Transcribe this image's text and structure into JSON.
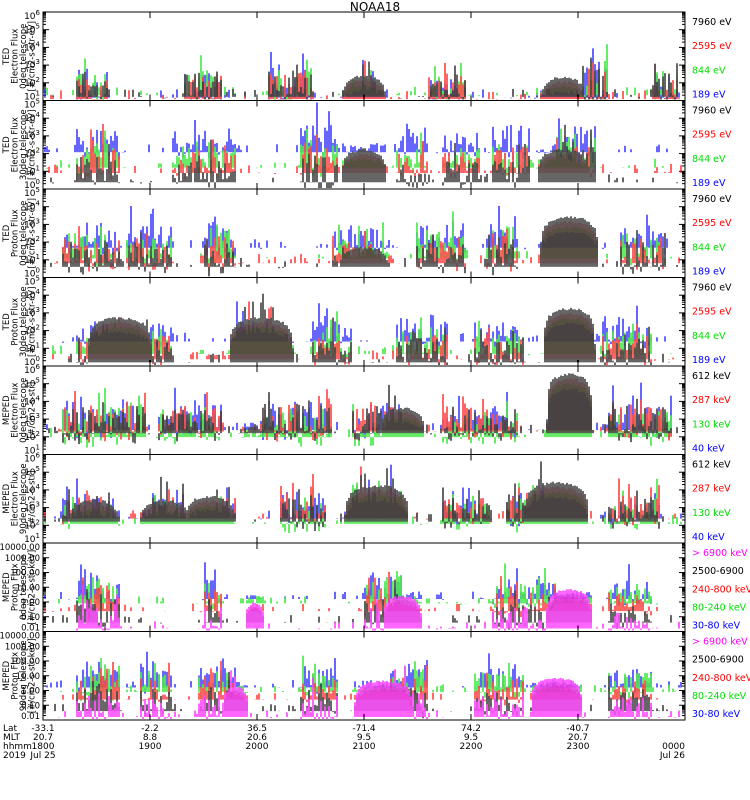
{
  "title": "NOAA18",
  "colors": {
    "black": "#000000",
    "red": "#ff0000",
    "green": "#00e000",
    "blue": "#0000ff",
    "magenta": "#ff00ff"
  },
  "chart_data": [
    {
      "type": "scatter",
      "instrument": "TED",
      "ylabel": [
        "TED",
        "Electron Flux",
        "0deg telescope",
        "[#/cm2-s-str-eV]"
      ],
      "yscale": "log",
      "ylim": [
        10,
        1000000
      ],
      "yticks": [
        "10^1",
        "10^2",
        "10^3",
        "10^4",
        "10^5",
        "10^6"
      ],
      "legend": [
        {
          "label": "7960 eV",
          "color": "black"
        },
        {
          "label": "2595 eV",
          "color": "red"
        },
        {
          "label": "844 eV",
          "color": "green"
        },
        {
          "label": "189 eV",
          "color": "blue"
        }
      ],
      "baseline": [
        20,
        15,
        25,
        18
      ],
      "segments": [
        [
          0.05,
          0.1,
          1
        ],
        [
          0.22,
          0.28,
          1.2
        ],
        [
          0.35,
          0.42,
          1.4
        ],
        [
          0.48,
          0.52,
          0.8
        ],
        [
          0.6,
          0.66,
          0.9
        ],
        [
          0.84,
          0.88,
          1.8
        ],
        [
          0.95,
          0.99,
          1.2
        ]
      ],
      "arches": [
        [
          0.5,
          0.035,
          300
        ],
        [
          0.81,
          0.035,
          250
        ]
      ]
    },
    {
      "type": "scatter",
      "instrument": "TED",
      "ylabel": [
        "TED",
        "Electron Flux",
        "30deg telescope",
        "[#/cm2-s-str-eV]"
      ],
      "yscale": "log",
      "ylim": [
        1,
        100000
      ],
      "yticks": [
        "10^0",
        "10^1",
        "10^2",
        "10^3",
        "10^4",
        "10^5"
      ],
      "legend": [
        {
          "label": "7960 eV",
          "color": "black"
        },
        {
          "label": "2595 eV",
          "color": "red"
        },
        {
          "label": "844 eV",
          "color": "green"
        },
        {
          "label": "189 eV",
          "color": "blue"
        }
      ],
      "baseline": [
        3,
        10,
        20,
        150
      ],
      "segments": [
        [
          0.05,
          0.12,
          1.2
        ],
        [
          0.2,
          0.3,
          1
        ],
        [
          0.4,
          0.46,
          1.4
        ],
        [
          0.55,
          0.6,
          0.9
        ],
        [
          0.62,
          0.68,
          1
        ],
        [
          0.7,
          0.76,
          1.3
        ],
        [
          0.8,
          0.86,
          1.8
        ]
      ],
      "arches": [
        [
          0.5,
          0.035,
          200
        ],
        [
          0.81,
          0.04,
          200
        ]
      ]
    },
    {
      "type": "scatter",
      "instrument": "TED",
      "ylabel": [
        "TED",
        "Proton Flux",
        "0deg telescope",
        "[#/cm2-s-str-eV]"
      ],
      "yscale": "log",
      "ylim": [
        1,
        100000
      ],
      "yticks": [
        "10^0",
        "10^1",
        "10^2",
        "10^3",
        "10^4",
        "10^5"
      ],
      "legend": [
        {
          "label": "7960 eV",
          "color": "black"
        },
        {
          "label": "2595 eV",
          "color": "red"
        },
        {
          "label": "844 eV",
          "color": "green"
        },
        {
          "label": "189 eV",
          "color": "blue"
        }
      ],
      "baseline": [
        5,
        8,
        15,
        60
      ],
      "segments": [
        [
          0.03,
          0.12,
          1.2
        ],
        [
          0.13,
          0.2,
          1
        ],
        [
          0.25,
          0.3,
          1.4
        ],
        [
          0.45,
          0.53,
          0.9
        ],
        [
          0.58,
          0.66,
          1.2
        ],
        [
          0.69,
          0.74,
          1.6
        ],
        [
          0.9,
          0.97,
          1.2
        ]
      ],
      "arches": [
        [
          0.82,
          0.045,
          3000
        ],
        [
          0.5,
          0.04,
          60
        ]
      ]
    },
    {
      "type": "scatter",
      "instrument": "TED",
      "ylabel": [
        "TED",
        "Proton Flux",
        "30deg telescope",
        "[#/cm2-s-str-eV]"
      ],
      "yscale": "log",
      "ylim": [
        1,
        100000
      ],
      "yticks": [
        "10^0",
        "10^1",
        "10^2",
        "10^3",
        "10^4",
        "10^5"
      ],
      "legend": [
        {
          "label": "7960 eV",
          "color": "black"
        },
        {
          "label": "2595 eV",
          "color": "red"
        },
        {
          "label": "844 eV",
          "color": "green"
        },
        {
          "label": "189 eV",
          "color": "blue"
        }
      ],
      "baseline": [
        2,
        3,
        6,
        30
      ],
      "segments": [
        [
          0.05,
          0.12,
          1
        ],
        [
          0.16,
          0.2,
          1.2
        ],
        [
          0.3,
          0.36,
          1.1
        ],
        [
          0.42,
          0.48,
          1
        ],
        [
          0.55,
          0.63,
          1.3
        ],
        [
          0.67,
          0.75,
          1
        ],
        [
          0.87,
          0.95,
          1.1
        ]
      ],
      "arches": [
        [
          0.82,
          0.04,
          2000
        ],
        [
          0.12,
          0.05,
          600
        ],
        [
          0.34,
          0.05,
          600
        ]
      ]
    },
    {
      "type": "scatter",
      "instrument": "MEPED",
      "ylabel": [
        "MEPED",
        "Electron Flux",
        "0deg telescope",
        "[#/cm2-s-str]"
      ],
      "yscale": "log",
      "ylim": [
        10,
        1000000
      ],
      "yticks": [
        "10^1",
        "10^2",
        "10^3",
        "10^4",
        "10^5",
        "10^6"
      ],
      "legend": [
        {
          "label": "612 keV",
          "color": "black"
        },
        {
          "label": "287 keV",
          "color": "red"
        },
        {
          "label": "130 keV",
          "color": "green"
        },
        {
          "label": "40 keV",
          "color": "blue"
        }
      ],
      "baseline": [
        200,
        250,
        120,
        300
      ],
      "segments": [
        [
          0.03,
          0.16,
          1.5
        ],
        [
          0.18,
          0.28,
          1.2
        ],
        [
          0.34,
          0.45,
          1.4
        ],
        [
          0.48,
          0.56,
          1.3
        ],
        [
          0.62,
          0.74,
          1.2
        ],
        [
          0.88,
          0.98,
          1.3
        ]
      ],
      "arches": [
        [
          0.56,
          0.035,
          5000
        ],
        [
          0.82,
          0.035,
          400000
        ],
        [
          0.33,
          0.02,
          400
        ]
      ]
    },
    {
      "type": "scatter",
      "instrument": "MEPED",
      "ylabel": [
        "MEPED",
        "Electron Flux",
        "90deg telescope",
        "[#/cm2-s-str]"
      ],
      "yscale": "log",
      "ylim": [
        10,
        1000000
      ],
      "yticks": [
        "10^1",
        "10^2",
        "10^3",
        "10^4",
        "10^5",
        "10^6"
      ],
      "legend": [
        {
          "label": "612 keV",
          "color": "black"
        },
        {
          "label": "287 keV",
          "color": "red"
        },
        {
          "label": "130 keV",
          "color": "green"
        },
        {
          "label": "40 keV",
          "color": "blue"
        }
      ],
      "baseline": [
        200,
        300,
        150,
        300
      ],
      "segments": [
        [
          0.03,
          0.12,
          1
        ],
        [
          0.17,
          0.22,
          1.2
        ],
        [
          0.27,
          0.3,
          1.1
        ],
        [
          0.37,
          0.44,
          1.3
        ],
        [
          0.48,
          0.56,
          1.4
        ],
        [
          0.62,
          0.7,
          1
        ],
        [
          0.72,
          0.78,
          1.3
        ],
        [
          0.88,
          0.96,
          1.1
        ]
      ],
      "arches": [
        [
          0.08,
          0.04,
          3000
        ],
        [
          0.19,
          0.04,
          3000
        ],
        [
          0.26,
          0.04,
          5000
        ],
        [
          0.52,
          0.05,
          20000
        ],
        [
          0.8,
          0.05,
          30000
        ]
      ]
    },
    {
      "type": "scatter",
      "instrument": "MEPED",
      "ylabel": [
        "MEPED",
        "Proton Flux",
        "0deg telescope",
        "[#/cm2-s-str-keV]"
      ],
      "yscale": "log",
      "ylim": [
        0.01,
        10000
      ],
      "yticks": [
        "0.01",
        "0.10",
        "1.00",
        "10.00",
        "100.00",
        "1000.00",
        "10000.00"
      ],
      "legend": [
        {
          "label": "> 6900 keV",
          "color": "magenta"
        },
        {
          "label": "2500-6900",
          "color": "black"
        },
        {
          "label": "240-800 keV",
          "color": "red"
        },
        {
          "label": "80-240 keV",
          "color": "green"
        },
        {
          "label": "30-80 keV",
          "color": "blue"
        }
      ],
      "baseline": [
        0.02,
        0.05,
        0.3,
        1,
        2
      ],
      "segments": [
        [
          0.05,
          0.12,
          1.5
        ],
        [
          0.25,
          0.28,
          1.2
        ],
        [
          0.5,
          0.56,
          1.3
        ],
        [
          0.7,
          0.8,
          1.2
        ],
        [
          0.88,
          0.95,
          1.1
        ]
      ],
      "arches": [
        [
          0.56,
          0.03,
          3
        ],
        [
          0.82,
          0.035,
          8
        ],
        [
          0.33,
          0.015,
          1
        ]
      ]
    },
    {
      "type": "scatter",
      "instrument": "MEPED",
      "ylabel": [
        "MEPED",
        "Proton Flux",
        "90deg telescope",
        "[#/cm2-s-str-keV]"
      ],
      "yscale": "log",
      "ylim": [
        0.01,
        10000
      ],
      "yticks": [
        "0.01",
        "0.10",
        "1.00",
        "10.00",
        "100.00",
        "1000.00",
        "10000.00"
      ],
      "legend": [
        {
          "label": "> 6900 keV",
          "color": "magenta"
        },
        {
          "label": "2500-6900",
          "color": "black"
        },
        {
          "label": "240-800 keV",
          "color": "red"
        },
        {
          "label": "80-240 keV",
          "color": "green"
        },
        {
          "label": "30-80 keV",
          "color": "blue"
        }
      ],
      "baseline": [
        0.02,
        0.05,
        0.3,
        1,
        2
      ],
      "segments": [
        [
          0.05,
          0.12,
          1.5
        ],
        [
          0.15,
          0.2,
          1.2
        ],
        [
          0.24,
          0.3,
          1.3
        ],
        [
          0.4,
          0.46,
          1.2
        ],
        [
          0.54,
          0.6,
          1.4
        ],
        [
          0.67,
          0.75,
          1.1
        ],
        [
          0.88,
          0.95,
          1.1
        ]
      ],
      "arches": [
        [
          0.53,
          0.045,
          5
        ],
        [
          0.8,
          0.04,
          8
        ],
        [
          0.3,
          0.02,
          2
        ]
      ]
    }
  ],
  "xaxis": {
    "rows": [
      {
        "name": "Lat",
        "values": [
          "-33.1",
          "-2.2",
          "36.5",
          "-71.4",
          "74.2",
          "-40.7",
          ""
        ]
      },
      {
        "name": "MLT",
        "values": [
          "20.7",
          "8.8",
          "20.6",
          "9.5",
          "9.5",
          "20.7",
          ""
        ]
      },
      {
        "name": "hhmm",
        "values": [
          "1800",
          "1900",
          "2000",
          "2100",
          "2200",
          "2300",
          "0000"
        ]
      },
      {
        "name": "2019",
        "values": [
          "Jul 25",
          "",
          "",
          "",
          "",
          "",
          "Jul 26"
        ]
      }
    ],
    "ticks": 7
  }
}
